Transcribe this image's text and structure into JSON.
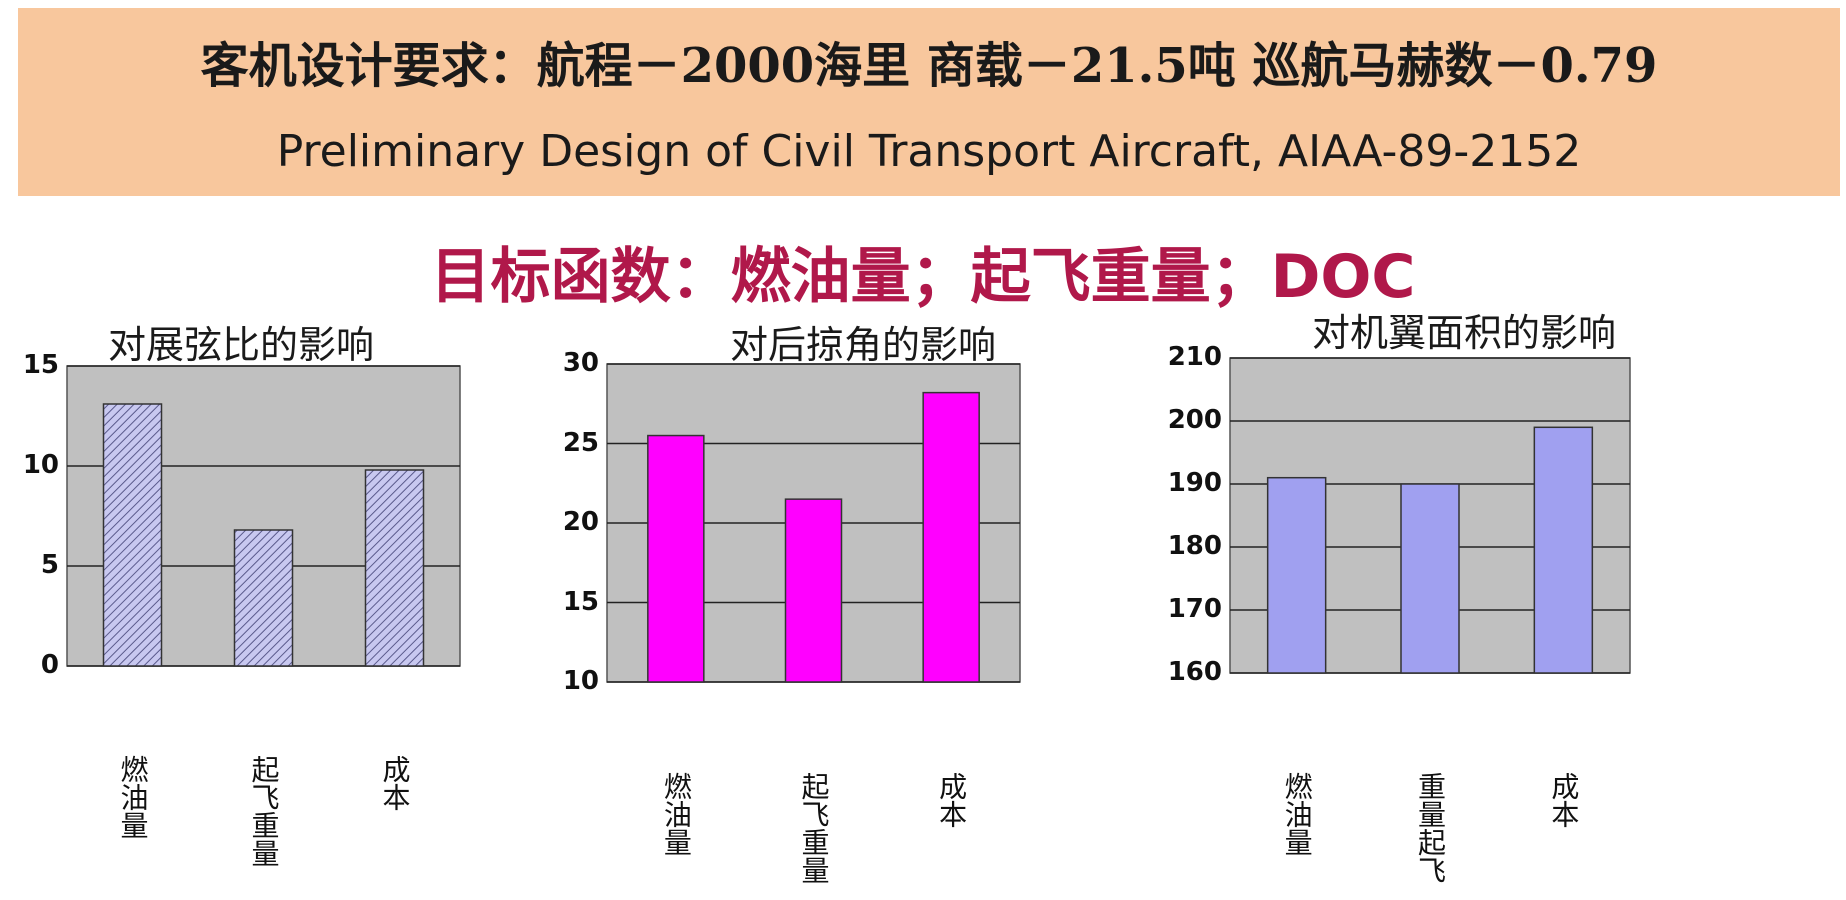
{
  "header": {
    "requirements": "客机设计要求：航程－2000海里   商载－21.5吨    巡航马赫数－0.79",
    "reference": "Preliminary Design of Civil Transport Aircraft, AIAA-89-2152"
  },
  "objective": "目标函数：燃油量；起飞重量；DOC",
  "chart_data": [
    {
      "type": "bar",
      "title": "对展弦比的影响",
      "categories": [
        "燃油量",
        "起飞重量",
        "成本"
      ],
      "values": [
        13.1,
        6.8,
        9.8
      ],
      "ylim": [
        0,
        15
      ],
      "yticks": [
        "0",
        "5",
        "10",
        "15"
      ],
      "grid": true,
      "colors": {
        "bar": "#c8c8f0",
        "bar_hatch": "#5a5a8c",
        "plot_bg": "#c0c0c0"
      }
    },
    {
      "type": "bar",
      "title": "对后掠角的影响",
      "categories": [
        "燃油量",
        "起飞重量",
        "成本"
      ],
      "values": [
        25.5,
        21.5,
        28.2
      ],
      "ylim": [
        10,
        30
      ],
      "yticks": [
        "10",
        "15",
        "20",
        "25",
        "30"
      ],
      "grid": true,
      "colors": {
        "bar": "#ff00ff",
        "plot_bg": "#c0c0c0"
      }
    },
    {
      "type": "bar",
      "title": "对机翼面积的影响",
      "categories": [
        "燃油量",
        "重量起飞",
        "成本"
      ],
      "values": [
        191,
        190,
        199
      ],
      "ylim": [
        160,
        210
      ],
      "yticks": [
        "160",
        "170",
        "180",
        "190",
        "200",
        "210"
      ],
      "grid": true,
      "colors": {
        "bar": "#a0a0f0",
        "plot_bg": "#c0c0c0"
      }
    }
  ]
}
